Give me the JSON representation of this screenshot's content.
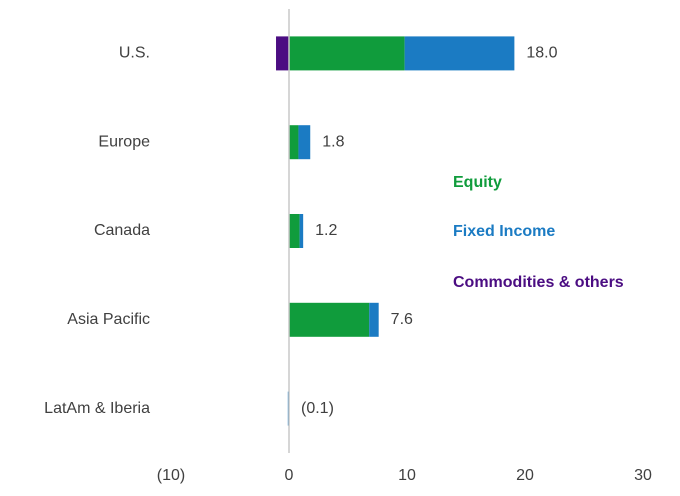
{
  "chart_data": {
    "type": "stacked-hbar",
    "categories": [
      "U.S.",
      "Europe",
      "Canada",
      "Asia Pacific",
      "LatAm & Iberia"
    ],
    "series": [
      {
        "name": "Equity",
        "color": "#109c3c",
        "values": [
          9.8,
          0.8,
          0.9,
          6.8,
          0
        ]
      },
      {
        "name": "Fixed Income",
        "color": "#1b7bc3",
        "values": [
          9.3,
          1.0,
          0.3,
          0.8,
          -0.1
        ]
      },
      {
        "name": "Commodities & others",
        "color": "#4b0d82",
        "values": [
          -1.1,
          0,
          0,
          0,
          0
        ]
      }
    ],
    "totals": [
      18.0,
      1.8,
      1.2,
      7.6,
      -0.1
    ],
    "total_labels": [
      "18.0",
      "1.8",
      "1.2",
      "7.6",
      "(0.1)"
    ],
    "xlim": [
      -10,
      30
    ],
    "xticks": [
      {
        "value": -10,
        "label": "(10)"
      },
      0,
      10,
      20,
      30
    ]
  }
}
